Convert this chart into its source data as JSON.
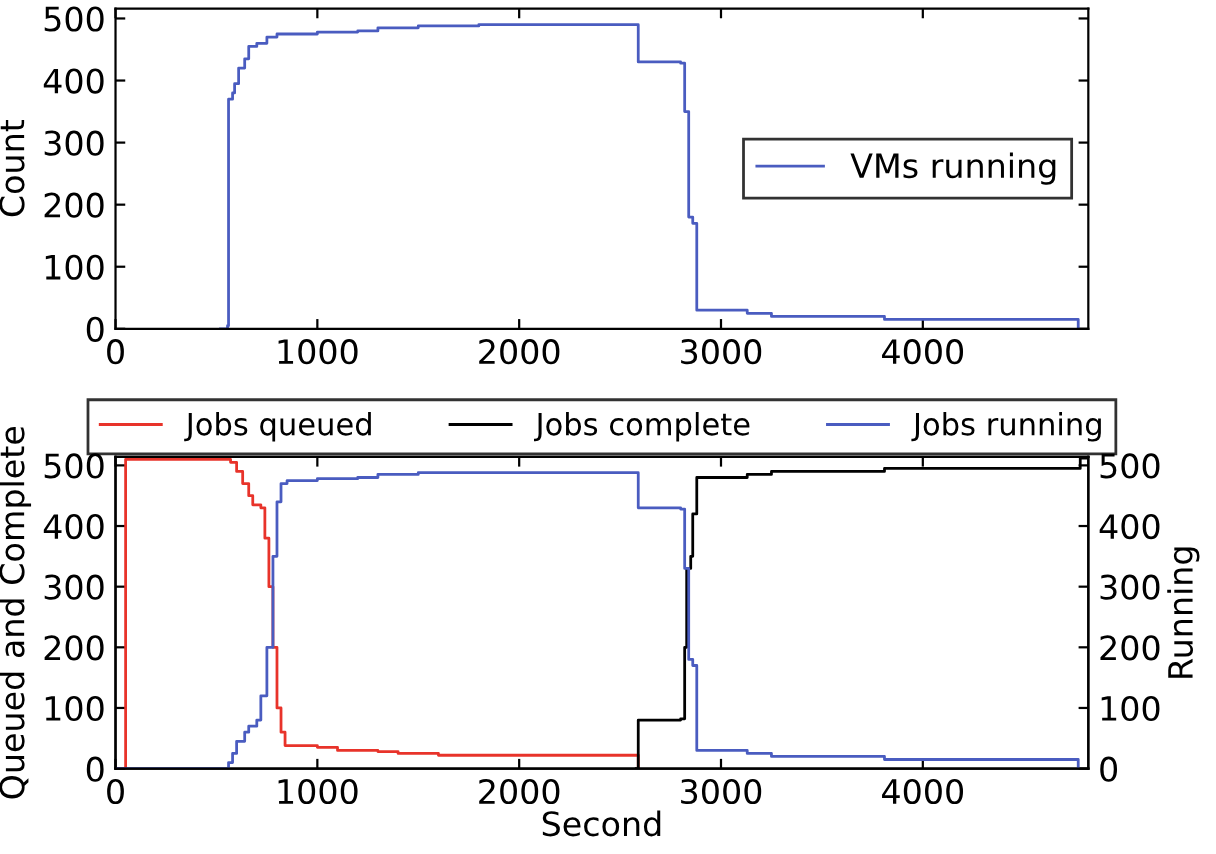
{
  "chart_data": [
    {
      "type": "step",
      "ylabel": "Count",
      "xlim": [
        0,
        4820
      ],
      "ylim": [
        0,
        516
      ],
      "xticks": [
        0,
        1000,
        2000,
        3000,
        4000
      ],
      "yticks": [
        0,
        100,
        200,
        300,
        400,
        500
      ],
      "legend": "right",
      "grid": false,
      "series": [
        {
          "name": "VMs running",
          "color": "#4a5cc0",
          "x": [
            520,
            555,
            560,
            580,
            590,
            610,
            640,
            660,
            700,
            750,
            800,
            1000,
            1200,
            1300,
            1500,
            1800,
            2580,
            2590,
            2750,
            2800,
            2820,
            2840,
            2860,
            2880,
            3100,
            3130,
            3250,
            3800,
            3810,
            4750,
            4770
          ],
          "values": [
            0,
            5,
            370,
            380,
            395,
            420,
            435,
            455,
            460,
            470,
            475,
            478,
            480,
            485,
            488,
            490,
            490,
            430,
            430,
            428,
            350,
            180,
            170,
            30,
            30,
            25,
            20,
            20,
            15,
            15,
            0
          ]
        }
      ]
    },
    {
      "type": "step",
      "xlabel": "Second",
      "ylabel": "Queued and Complete",
      "y2label": "Running",
      "xlim": [
        0,
        4820
      ],
      "ylim": [
        0,
        514
      ],
      "y2lim": [
        0,
        514
      ],
      "xticks": [
        0,
        1000,
        2000,
        3000,
        4000
      ],
      "yticks": [
        0,
        100,
        200,
        300,
        400,
        500
      ],
      "y2ticks": [
        0,
        100,
        200,
        300,
        400,
        500
      ],
      "legend": "top",
      "grid": false,
      "series": [
        {
          "name": "Jobs queued",
          "color": "#e8332a",
          "x": [
            0,
            50,
            530,
            570,
            600,
            630,
            660,
            680,
            720,
            740,
            760,
            780,
            800,
            820,
            840,
            1000,
            1100,
            1300,
            1400,
            1600,
            2580,
            2590
          ],
          "values": [
            0,
            510,
            510,
            505,
            490,
            470,
            450,
            435,
            430,
            380,
            300,
            200,
            100,
            60,
            38,
            35,
            30,
            28,
            25,
            22,
            22,
            0
          ]
        },
        {
          "name": "Jobs complete",
          "color": "#000000",
          "x": [
            2580,
            2590,
            2800,
            2820,
            2830,
            2850,
            2860,
            2880,
            3100,
            3130,
            3250,
            3800,
            3810,
            4770,
            4780,
            4820
          ],
          "values": [
            0,
            80,
            82,
            200,
            330,
            350,
            420,
            480,
            480,
            485,
            490,
            490,
            495,
            495,
            512,
            512
          ]
        },
        {
          "name": "Jobs running",
          "color": "#4a5cc0",
          "axis": "y2",
          "x": [
            0,
            540,
            560,
            580,
            600,
            640,
            660,
            700,
            720,
            750,
            780,
            800,
            820,
            850,
            1000,
            1200,
            1300,
            1500,
            2580,
            2590,
            2800,
            2820,
            2840,
            2860,
            2880,
            3100,
            3130,
            3250,
            3800,
            3810,
            4750,
            4770
          ],
          "values": [
            0,
            0,
            10,
            25,
            45,
            60,
            70,
            80,
            120,
            200,
            350,
            440,
            470,
            475,
            478,
            480,
            485,
            488,
            488,
            430,
            428,
            330,
            180,
            170,
            30,
            30,
            25,
            20,
            20,
            15,
            15,
            0
          ]
        }
      ]
    }
  ]
}
